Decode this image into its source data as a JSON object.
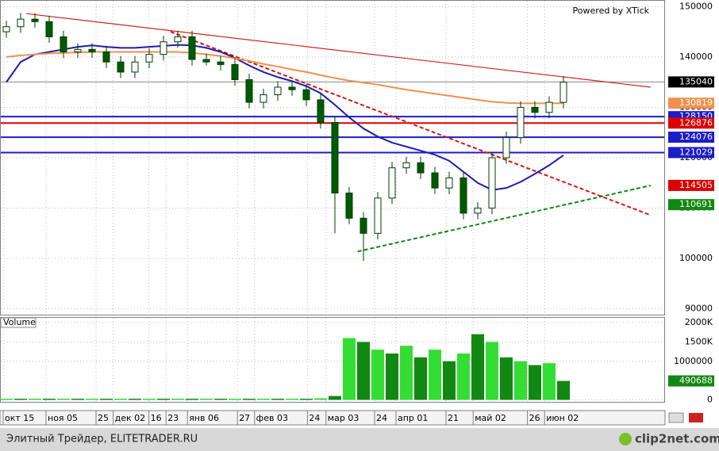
{
  "chart_data": [
    {
      "type": "candlestick",
      "watermark": "Powered by XTick",
      "open": [
        145000,
        146000,
        147500,
        147000,
        144000,
        141000,
        141500,
        141000,
        139000,
        137000,
        139000,
        140500,
        143000,
        144000,
        139500,
        139000,
        138500,
        135500,
        131000,
        132500,
        134000,
        133500,
        131500,
        127000,
        113000,
        108000,
        105000,
        112000,
        118000,
        119000,
        117000,
        114000,
        116000,
        109000,
        110000,
        120000,
        124000,
        130000,
        129000,
        131000
      ],
      "high": [
        147200,
        148700,
        148700,
        148200,
        145200,
        142700,
        142700,
        142200,
        140200,
        140200,
        141700,
        144200,
        145200,
        145200,
        140700,
        140200,
        139700,
        136700,
        133700,
        135200,
        135200,
        134700,
        132700,
        128200,
        114200,
        109200,
        113200,
        119200,
        120200,
        120200,
        118200,
        117200,
        117200,
        111200,
        121200,
        125200,
        131200,
        131200,
        132200,
        136200
      ],
      "low": [
        143800,
        144800,
        145800,
        142800,
        139800,
        139800,
        139800,
        137800,
        135800,
        135800,
        137800,
        139300,
        141800,
        138300,
        138300,
        137300,
        134300,
        129800,
        129800,
        131300,
        132300,
        130300,
        125800,
        105000,
        106800,
        99500,
        103800,
        110800,
        116800,
        115800,
        112800,
        112800,
        107800,
        107800,
        108800,
        118800,
        122800,
        127800,
        127800,
        129800
      ],
      "close": [
        146000,
        147500,
        147000,
        144000,
        141000,
        141500,
        141000,
        139000,
        137000,
        139000,
        140500,
        143000,
        144000,
        139500,
        139000,
        138500,
        135500,
        131000,
        132500,
        134000,
        133500,
        131500,
        127000,
        113000,
        108000,
        105000,
        112000,
        118000,
        119000,
        117000,
        114000,
        116000,
        109000,
        110000,
        120000,
        124000,
        130000,
        129000,
        131000,
        135000
      ],
      "up_color": "#ffffff",
      "down_color": "#005a00",
      "edge_color": "#003c00",
      "series": [
        {
          "color": "#1c1cb4",
          "values": [
            135000,
            139000,
            140500,
            141000,
            141500,
            142000,
            142300,
            142000,
            141800,
            141800,
            142000,
            142200,
            142400,
            142300,
            141800,
            141000,
            139800,
            138300,
            137000,
            136000,
            135200,
            134200,
            132800,
            130500,
            128000,
            125800,
            124200,
            123000,
            122200,
            121400,
            120600,
            119400,
            117200,
            115000,
            113600,
            114000,
            115200,
            116800,
            118500,
            120500
          ]
        },
        {
          "color": "#f0904c",
          "values": [
            140000,
            140300,
            140500,
            140700,
            140800,
            140900,
            141000,
            141000,
            141000,
            141000,
            141000,
            141000,
            141000,
            140800,
            140500,
            140200,
            139700,
            139200,
            138600,
            138100,
            137500,
            137000,
            136400,
            135800,
            135300,
            134900,
            134500,
            134000,
            133500,
            133100,
            132700,
            132300,
            131900,
            131500,
            131100,
            130900,
            130800,
            130800,
            130800,
            130819
          ]
        }
      ],
      "trend_lines": [
        {
          "color": "#cc2222",
          "dash": false,
          "x": [
            1.4,
            45.1
          ],
          "y": [
            148600,
            134000
          ]
        },
        {
          "color": "#dd1111",
          "dash": true,
          "x": [
            11.5,
            45.1
          ],
          "y": [
            145000,
            108600
          ]
        },
        {
          "color": "#118811",
          "dash": true,
          "x": [
            24.6,
            45.1
          ],
          "y": [
            101400,
            114500
          ]
        }
      ],
      "levels": [
        {
          "value": 135040,
          "color": "#000000",
          "line": "#888888"
        },
        {
          "value": 130819,
          "color": "#f0904c",
          "line": null
        },
        {
          "value": 128150,
          "color": "#1c1cc8",
          "line": "#1c1cc8"
        },
        {
          "value": 126876,
          "color": "#dd0000",
          "line": "#dd0000"
        },
        {
          "value": 124076,
          "color": "#1c1cc8",
          "line": "#1c1cc8"
        },
        {
          "value": 121029,
          "color": "#1c1cc8",
          "line": "#1c1cc8"
        },
        {
          "value": 114505,
          "color": "#dd0000",
          "line": null
        },
        {
          "value": 110691,
          "color": "#118811",
          "line": null
        }
      ],
      "ylim": [
        88700,
        151300
      ],
      "yticks": [
        90000,
        100000,
        110000,
        120000,
        130000,
        140000,
        150000
      ],
      "xticks": [
        {
          "value": 0,
          "label": "окт 15"
        },
        {
          "value": 3,
          "label": "ноя 05"
        },
        {
          "value": 6.5,
          "label": "25"
        },
        {
          "value": 7.7,
          "label": "дек 02"
        },
        {
          "value": 10.2,
          "label": "16"
        },
        {
          "value": 11.4,
          "label": "23"
        },
        {
          "value": 12.9,
          "label": "янв 06"
        },
        {
          "value": 16.4,
          "label": "27"
        },
        {
          "value": 17.6,
          "label": "фев 03"
        },
        {
          "value": 21.3,
          "label": "24"
        },
        {
          "value": 22.6,
          "label": "мар 03"
        },
        {
          "value": 26,
          "label": "24"
        },
        {
          "value": 27.5,
          "label": "апр 01"
        },
        {
          "value": 31,
          "label": "21"
        },
        {
          "value": 32.9,
          "label": "май 02"
        },
        {
          "value": 36.7,
          "label": "26"
        },
        {
          "value": 37.9,
          "label": "июн 02"
        }
      ],
      "grid": true
    },
    {
      "type": "bar",
      "title": "Volume",
      "values": [
        30000,
        30000,
        30000,
        30000,
        30000,
        30000,
        30000,
        30000,
        30000,
        30000,
        30000,
        30000,
        30000,
        30000,
        30000,
        30000,
        30000,
        30000,
        30000,
        30000,
        30000,
        30000,
        40000,
        100000,
        1600000,
        1500000,
        1300000,
        1200000,
        1400000,
        1100000,
        1300000,
        1000000,
        1200000,
        1700000,
        1500000,
        1100000,
        1000000,
        900000,
        950000,
        490688
      ],
      "color": "#33dd33",
      "alt_color": "#118811",
      "label_color": "#118811",
      "ylim": [
        -72000,
        2144000
      ],
      "yticks": [
        0,
        1000000,
        {
          "value": 1500000,
          "label": "1500K"
        },
        {
          "value": 2000000,
          "label": "2000K"
        }
      ],
      "grid": true
    }
  ],
  "footer": {
    "text": "Элитный Трейдер, ELITETRADER.RU",
    "logo": "clip2net.com"
  }
}
